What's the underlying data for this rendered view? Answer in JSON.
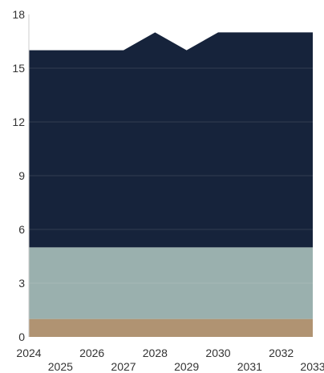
{
  "chart_data": {
    "type": "area",
    "stacked": true,
    "title": "",
    "xlabel": "",
    "ylabel": "",
    "x": [
      2024,
      2025,
      2026,
      2027,
      2028,
      2029,
      2030,
      2031,
      2032,
      2033
    ],
    "x_tick_labels": [
      "2024",
      "2025",
      "2026",
      "2027",
      "2028",
      "2029",
      "2030",
      "2031",
      "2032",
      "2033"
    ],
    "y_ticks": [
      0,
      3,
      6,
      9,
      12,
      15,
      18
    ],
    "ylim": [
      0,
      18
    ],
    "grid": true,
    "legend": "none",
    "series": [
      {
        "values": [
          1,
          1,
          1,
          1,
          1,
          1,
          1,
          1,
          1,
          1
        ],
        "color": "#b09372"
      },
      {
        "values": [
          4,
          4,
          4,
          4,
          4,
          4,
          4,
          4,
          4,
          4
        ],
        "color": "#9ab0ae"
      },
      {
        "values": [
          11,
          11,
          11,
          11,
          12,
          11,
          12,
          12,
          12,
          12
        ],
        "color": "#16233b"
      }
    ]
  }
}
